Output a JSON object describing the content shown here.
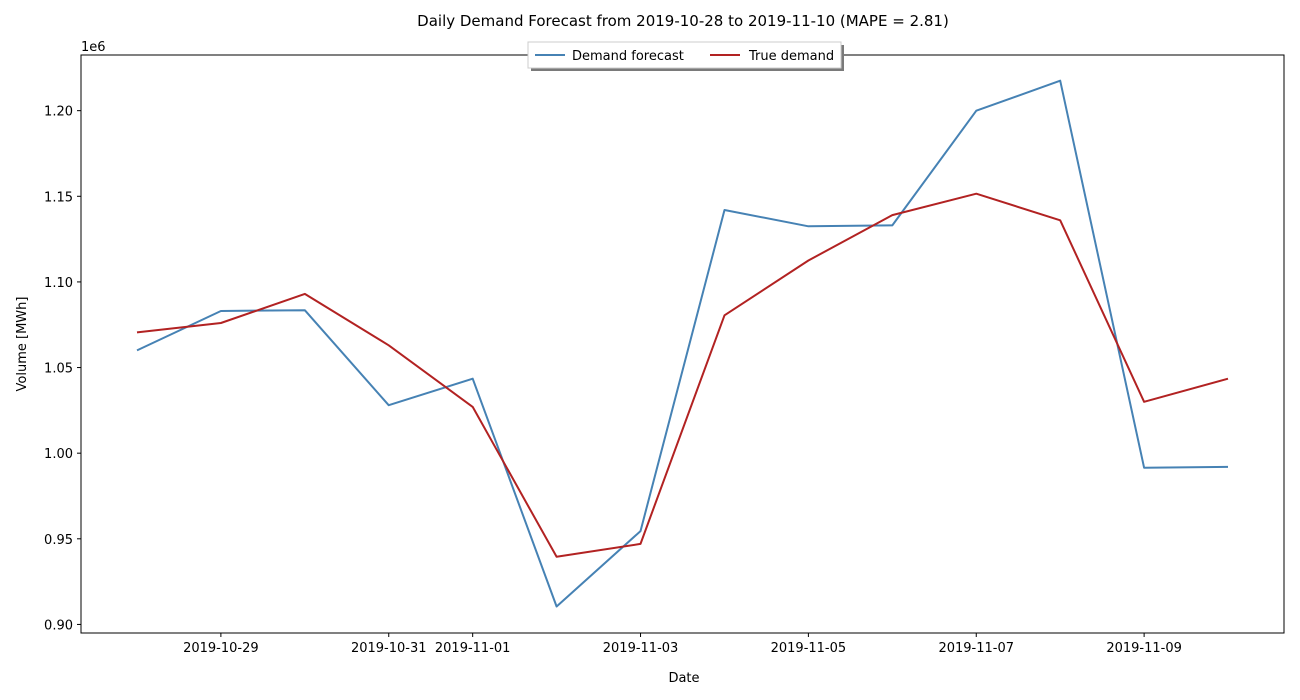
{
  "chart_data": {
    "type": "line",
    "title": "Daily Demand Forecast from 2019-10-28 to 2019-11-10 (MAPE = 2.81)",
    "xlabel": "Date",
    "ylabel": "Volume [MWh]",
    "y_offset_label": "1e6",
    "x": [
      "2019-10-28",
      "2019-10-29",
      "2019-10-30",
      "2019-10-31",
      "2019-11-01",
      "2019-11-02",
      "2019-11-03",
      "2019-11-04",
      "2019-11-05",
      "2019-11-06",
      "2019-11-07",
      "2019-11-08",
      "2019-11-09",
      "2019-11-10"
    ],
    "x_tick_labels": [
      "2019-10-29",
      "2019-10-31",
      "2019-11-01",
      "2019-11-03",
      "2019-11-05",
      "2019-11-07",
      "2019-11-09"
    ],
    "y_tick_labels": [
      "0.90",
      "0.95",
      "1.00",
      "1.05",
      "1.10",
      "1.15",
      "1.20"
    ],
    "y_ticks": [
      0.9,
      0.95,
      1.0,
      1.05,
      1.1,
      1.15,
      1.2
    ],
    "ylim": [
      0.895,
      1.2325
    ],
    "xlim": [
      "2019-10-27 08:00",
      "2019-11-10 16:00"
    ],
    "grid": false,
    "legend_placement": "top-center",
    "series": [
      {
        "name": "Demand forecast",
        "color": "#4682b4",
        "values": [
          1.06,
          1.083,
          1.0835,
          1.028,
          1.0435,
          0.9105,
          0.9545,
          1.142,
          1.1325,
          1.133,
          1.2,
          1.2175,
          0.9915,
          0.992
        ]
      },
      {
        "name": "True demand",
        "color": "#b22222",
        "values": [
          1.0705,
          1.076,
          1.093,
          1.063,
          1.027,
          0.9395,
          0.947,
          1.0805,
          1.1125,
          1.139,
          1.1515,
          1.136,
          1.03,
          1.0435
        ]
      }
    ]
  }
}
